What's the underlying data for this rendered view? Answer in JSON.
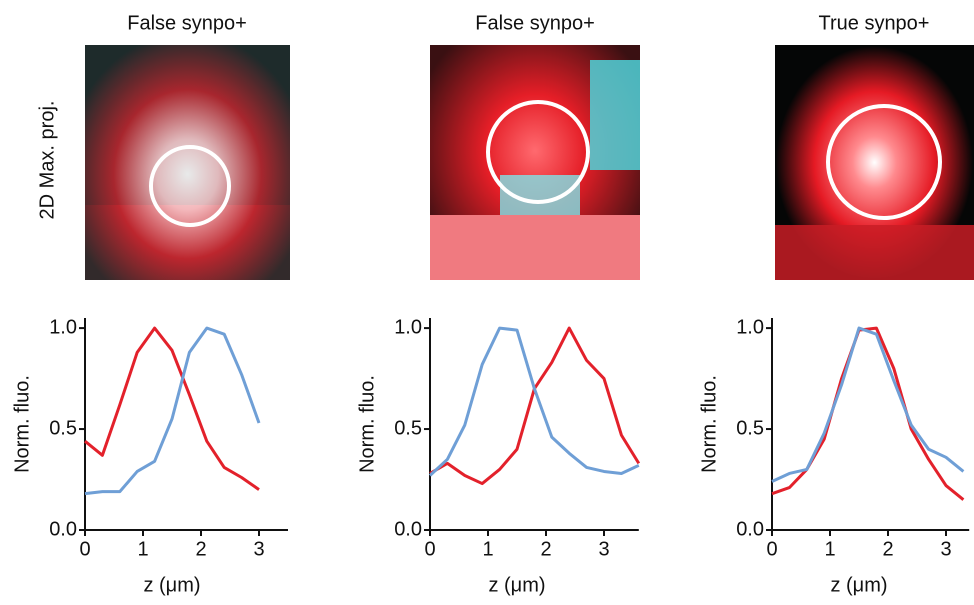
{
  "row_label": "2D Max. proj.",
  "panels": [
    {
      "title": "False synpo+"
    },
    {
      "title": "False synpo+"
    },
    {
      "title": "True synpo+"
    }
  ],
  "chart_data": [
    {
      "type": "line",
      "xlabel": "z (μm)",
      "ylabel": "Norm. fluo.",
      "xlim": [
        0,
        3.5
      ],
      "ylim": [
        0,
        1.05
      ],
      "xticks": [
        0,
        1,
        2,
        3
      ],
      "yticks": [
        {
          "value": 0,
          "label": "0.0"
        },
        0.5,
        {
          "value": 1,
          "label": "1.0"
        }
      ],
      "x": [
        0,
        0.3,
        0.6,
        0.9,
        1.2,
        1.5,
        1.8,
        2.1,
        2.4,
        2.7,
        3.0
      ],
      "series": [
        {
          "color": "#e3212b",
          "values": [
            0.44,
            0.37,
            0.62,
            0.88,
            1.0,
            0.89,
            0.67,
            0.44,
            0.31,
            0.26,
            0.2
          ]
        },
        {
          "color": "#6f9fd6",
          "values": [
            0.18,
            0.19,
            0.19,
            0.29,
            0.34,
            0.55,
            0.88,
            1.0,
            0.97,
            0.77,
            0.53
          ]
        }
      ]
    },
    {
      "type": "line",
      "xlabel": "z (μm)",
      "ylabel": "Norm. fluo.",
      "xlim": [
        0,
        3.6
      ],
      "ylim": [
        0,
        1.05
      ],
      "xticks": [
        0,
        1,
        2,
        3
      ],
      "yticks": [
        {
          "value": 0,
          "label": "0.0"
        },
        0.5,
        {
          "value": 1,
          "label": "1.0"
        }
      ],
      "x": [
        0,
        0.3,
        0.6,
        0.9,
        1.2,
        1.5,
        1.8,
        2.1,
        2.4,
        2.7,
        3.0,
        3.3,
        3.6
      ],
      "series": [
        {
          "color": "#e3212b",
          "values": [
            0.28,
            0.33,
            0.27,
            0.23,
            0.3,
            0.4,
            0.7,
            0.83,
            1.0,
            0.84,
            0.75,
            0.47,
            0.33
          ]
        },
        {
          "color": "#6f9fd6",
          "values": [
            0.27,
            0.35,
            0.52,
            0.82,
            1.0,
            0.99,
            0.7,
            0.46,
            0.38,
            0.31,
            0.29,
            0.28,
            0.32
          ]
        }
      ]
    },
    {
      "type": "line",
      "xlabel": "z (μm)",
      "ylabel": "Norm. fluo.",
      "xlim": [
        0,
        3.4
      ],
      "ylim": [
        0,
        1.05
      ],
      "xticks": [
        0,
        1,
        2,
        3
      ],
      "yticks": [
        {
          "value": 0,
          "label": "0.0"
        },
        0.5,
        {
          "value": 1,
          "label": "1.0"
        }
      ],
      "x": [
        0,
        0.3,
        0.6,
        0.9,
        1.2,
        1.5,
        1.8,
        2.1,
        2.4,
        2.7,
        3.0,
        3.3
      ],
      "series": [
        {
          "color": "#e3212b",
          "values": [
            0.18,
            0.21,
            0.3,
            0.45,
            0.75,
            0.99,
            1.0,
            0.8,
            0.5,
            0.35,
            0.22,
            0.15
          ]
        },
        {
          "color": "#6f9fd6",
          "values": [
            0.24,
            0.28,
            0.3,
            0.48,
            0.72,
            1.0,
            0.97,
            0.74,
            0.52,
            0.4,
            0.36,
            0.29
          ]
        }
      ]
    }
  ]
}
